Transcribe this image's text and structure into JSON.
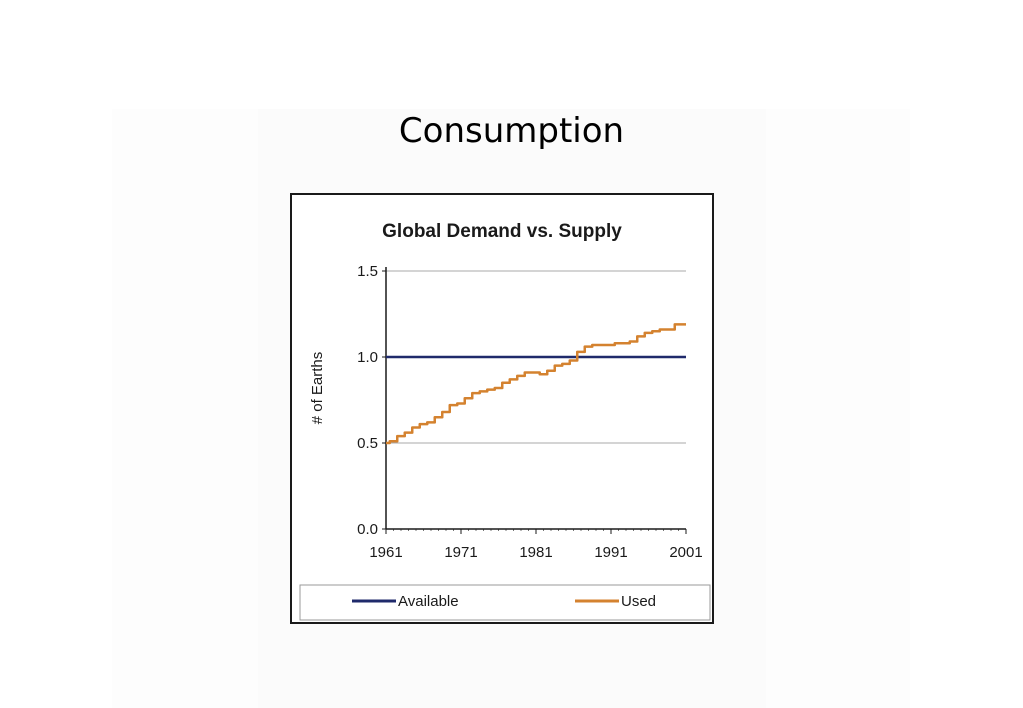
{
  "slide": {
    "title": "Consumption"
  },
  "chart_data": {
    "type": "line",
    "title": "Global Demand vs. Supply",
    "xlabel": "",
    "ylabel": "# of Earths",
    "xlim": [
      1961,
      2001
    ],
    "ylim": [
      0.0,
      1.5
    ],
    "x_ticks": [
      "1961",
      "1971",
      "1981",
      "1991",
      "2001"
    ],
    "y_ticks": [
      "0.0",
      "0.5",
      "1.0",
      "1.5"
    ],
    "grid": "horizontal",
    "legend": "bottom",
    "series": [
      {
        "name": "Available",
        "color": "#1f2a6b",
        "x": [
          1961,
          2001
        ],
        "values": [
          1.0,
          1.0
        ]
      },
      {
        "name": "Used",
        "color": "#d4822f",
        "x": [
          1961,
          1962,
          1963,
          1964,
          1965,
          1966,
          1967,
          1968,
          1969,
          1970,
          1971,
          1972,
          1973,
          1974,
          1975,
          1976,
          1977,
          1978,
          1979,
          1980,
          1981,
          1982,
          1983,
          1984,
          1985,
          1986,
          1987,
          1988,
          1989,
          1990,
          1991,
          1992,
          1993,
          1994,
          1995,
          1996,
          1997,
          1998,
          1999,
          2000,
          2001
        ],
        "values": [
          0.5,
          0.51,
          0.54,
          0.56,
          0.59,
          0.61,
          0.62,
          0.65,
          0.68,
          0.72,
          0.73,
          0.76,
          0.79,
          0.8,
          0.81,
          0.82,
          0.85,
          0.87,
          0.89,
          0.91,
          0.91,
          0.9,
          0.92,
          0.95,
          0.96,
          0.98,
          1.03,
          1.06,
          1.07,
          1.07,
          1.07,
          1.08,
          1.08,
          1.09,
          1.12,
          1.14,
          1.15,
          1.16,
          1.16,
          1.19,
          1.19
        ]
      }
    ]
  }
}
